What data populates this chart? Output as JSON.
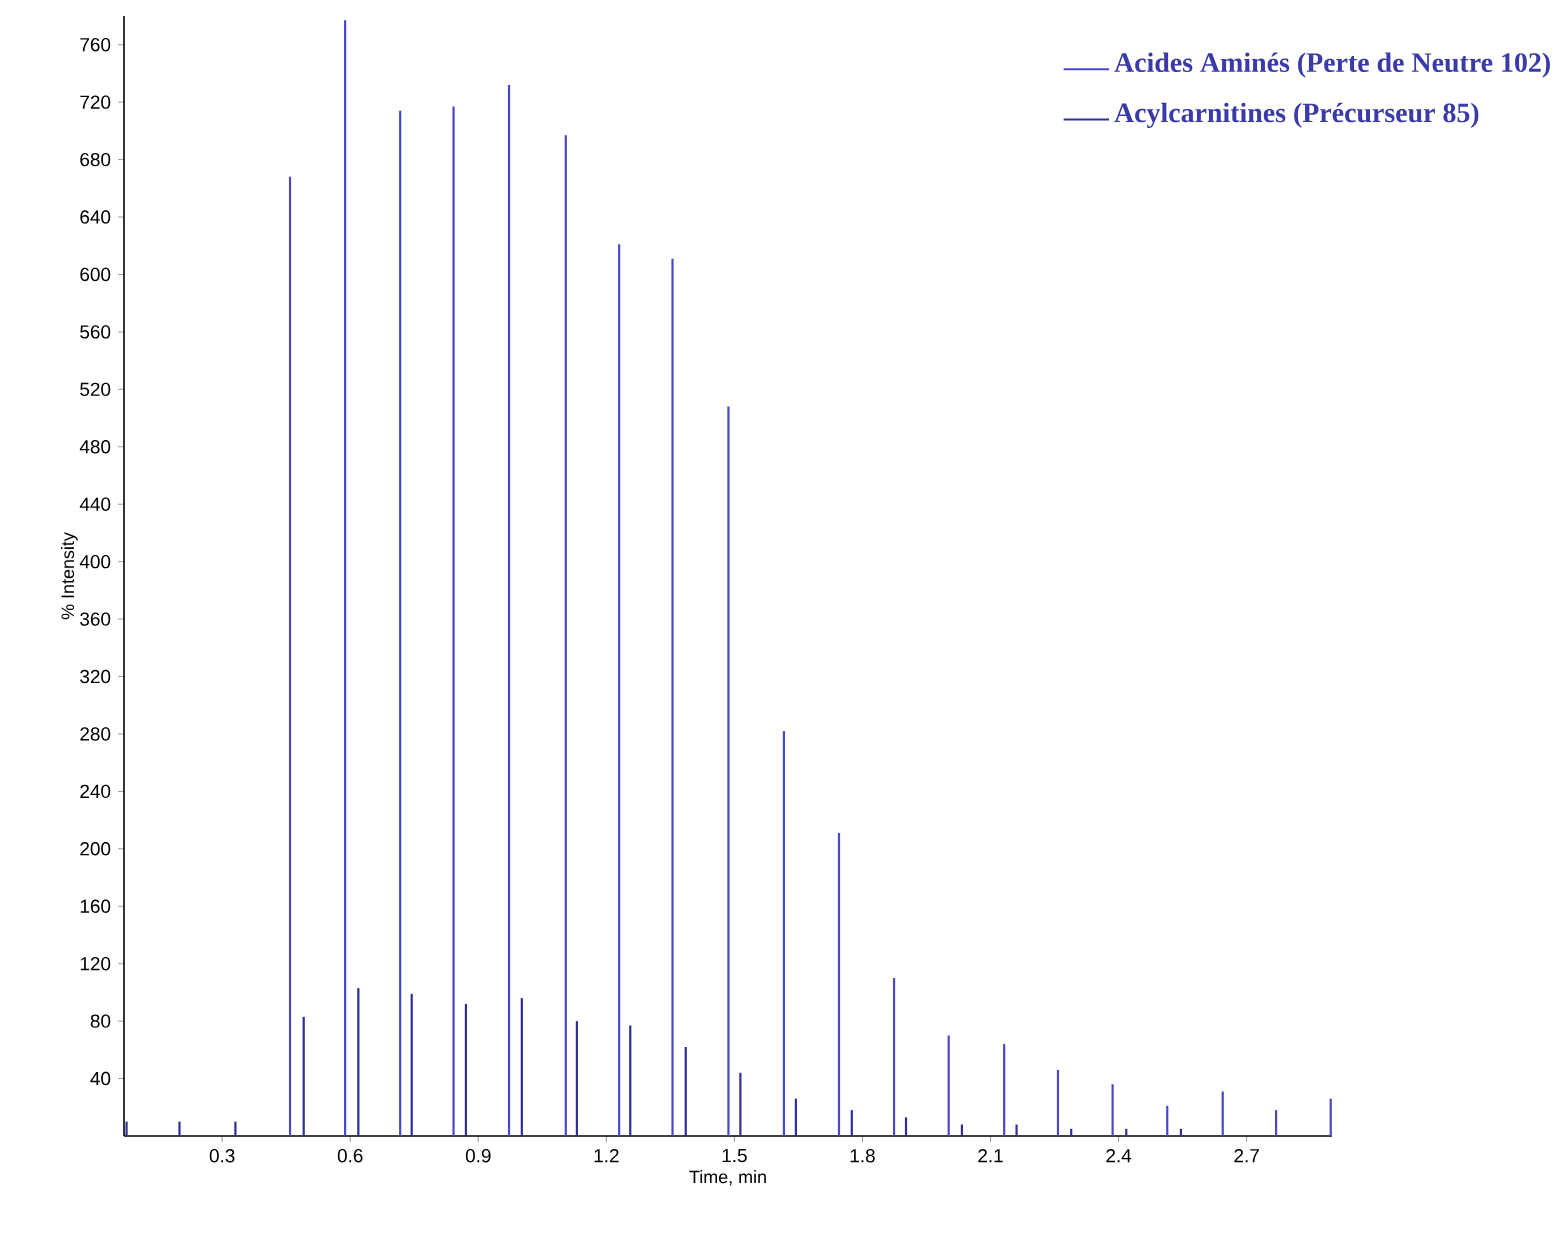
{
  "chart_data": {
    "type": "bar",
    "xlabel": "Time, min",
    "ylabel": "% Intensity",
    "xlim": [
      0.07,
      2.9
    ],
    "ylim": [
      0,
      780
    ],
    "xticks": [
      0.3,
      0.6,
      0.9,
      1.2,
      1.5,
      1.8,
      2.1,
      2.4,
      2.7
    ],
    "yticks": [
      40,
      80,
      120,
      160,
      200,
      240,
      280,
      320,
      360,
      400,
      440,
      480,
      520,
      560,
      600,
      640,
      680,
      720,
      760
    ],
    "legend": "top right",
    "grid": false,
    "series": [
      {
        "name": "Acides Aminés (Perte de Neutre 102)",
        "color": "#4848c8",
        "x": [
          0.459,
          0.588,
          0.717,
          0.842,
          0.972,
          1.105,
          1.23,
          1.355,
          1.486,
          1.616,
          1.745,
          1.874,
          2.002,
          2.132,
          2.258,
          2.386,
          2.514,
          2.644,
          2.769,
          2.897
        ],
        "values": [
          668,
          777,
          714,
          717,
          732,
          697,
          621,
          611,
          508,
          282,
          211,
          110,
          70,
          64,
          46,
          36,
          21,
          31,
          18,
          26
        ]
      },
      {
        "name": "Acylcarnitines (Précurseur 85)",
        "color": "#2e2e96",
        "x": [
          0.076,
          0.2,
          0.331,
          0.491,
          0.619,
          0.744,
          0.871,
          1.002,
          1.131,
          1.256,
          1.386,
          1.514,
          1.644,
          1.775,
          1.902,
          2.033,
          2.161,
          2.289,
          2.418,
          2.546
        ],
        "values": [
          10,
          10,
          10,
          83,
          103,
          99,
          92,
          96,
          80,
          77,
          62,
          44,
          26,
          18,
          13,
          8,
          8,
          5,
          5,
          5
        ]
      }
    ]
  }
}
